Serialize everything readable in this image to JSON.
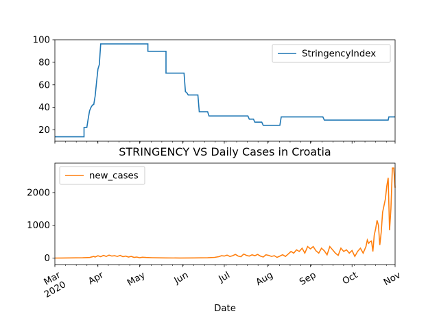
{
  "chart_data": [
    {
      "type": "line",
      "title": "",
      "xlabel": "",
      "ylabel": "",
      "ylim": [
        10,
        100
      ],
      "yticks": [
        20,
        40,
        60,
        80,
        100
      ],
      "xlim_days": [
        0,
        245
      ],
      "legend": "top-right",
      "grid": false,
      "series": [
        {
          "name": "StringencyIndex",
          "color": "#1f77b4",
          "step": true,
          "points": [
            [
              0,
              13.9
            ],
            [
              21,
              13.9
            ],
            [
              21,
              22.2
            ],
            [
              23,
              22.2
            ],
            [
              24,
              30
            ],
            [
              25,
              37
            ],
            [
              26,
              40
            ],
            [
              27,
              42
            ],
            [
              28,
              42.6
            ],
            [
              29,
              50
            ],
            [
              30,
              62
            ],
            [
              31,
              74
            ],
            [
              32,
              78
            ],
            [
              33,
              96.3
            ],
            [
              67,
              96.3
            ],
            [
              67,
              89.8
            ],
            [
              80,
              89.8
            ],
            [
              80,
              70.4
            ],
            [
              93,
              70.4
            ],
            [
              94,
              54
            ],
            [
              95,
              53
            ],
            [
              96,
              51
            ],
            [
              103,
              51
            ],
            [
              104,
              36.1
            ],
            [
              110,
              36.1
            ],
            [
              111,
              32.4
            ],
            [
              139,
              32.4
            ],
            [
              140,
              29.6
            ],
            [
              143,
              29.6
            ],
            [
              144,
              26.9
            ],
            [
              149,
              26.9
            ],
            [
              150,
              24.1
            ],
            [
              162,
              24.1
            ],
            [
              163,
              31.5
            ],
            [
              193,
              31.5
            ],
            [
              194,
              28.7
            ],
            [
              240,
              28.7
            ],
            [
              240.5,
              31.5
            ],
            [
              245,
              31.5
            ]
          ]
        }
      ]
    },
    {
      "type": "line",
      "title": "STRINGENCY VS Daily Cases in Croatia",
      "xlabel": "Date",
      "ylabel": "",
      "ylim": [
        -200,
        2900
      ],
      "yticks": [
        0,
        1000,
        2000
      ],
      "xlim_days": [
        0,
        245
      ],
      "xticks": [
        {
          "day": 0,
          "label": "Mar",
          "sub": "2020"
        },
        {
          "day": 31,
          "label": "Apr",
          "sub": ""
        },
        {
          "day": 61,
          "label": "May",
          "sub": ""
        },
        {
          "day": 92,
          "label": "Jun",
          "sub": ""
        },
        {
          "day": 122,
          "label": "Jul",
          "sub": ""
        },
        {
          "day": 153,
          "label": "Aug",
          "sub": ""
        },
        {
          "day": 184,
          "label": "Sep",
          "sub": ""
        },
        {
          "day": 214,
          "label": "Oct",
          "sub": ""
        },
        {
          "day": 245,
          "label": "Nov",
          "sub": ""
        }
      ],
      "legend": "top-left",
      "grid": false,
      "series": [
        {
          "name": "new_cases",
          "color": "#ff7f0e",
          "points": [
            [
              0,
              0
            ],
            [
              5,
              2
            ],
            [
              10,
              3
            ],
            [
              15,
              5
            ],
            [
              20,
              8
            ],
            [
              25,
              15
            ],
            [
              28,
              50
            ],
            [
              29,
              30
            ],
            [
              31,
              70
            ],
            [
              33,
              40
            ],
            [
              35,
              80
            ],
            [
              37,
              50
            ],
            [
              39,
              90
            ],
            [
              41,
              60
            ],
            [
              43,
              70
            ],
            [
              45,
              50
            ],
            [
              47,
              80
            ],
            [
              49,
              40
            ],
            [
              51,
              60
            ],
            [
              53,
              30
            ],
            [
              55,
              50
            ],
            [
              57,
              20
            ],
            [
              59,
              30
            ],
            [
              61,
              10
            ],
            [
              63,
              25
            ],
            [
              66,
              15
            ],
            [
              70,
              10
            ],
            [
              75,
              5
            ],
            [
              80,
              3
            ],
            [
              90,
              2
            ],
            [
              100,
              3
            ],
            [
              110,
              8
            ],
            [
              115,
              20
            ],
            [
              118,
              40
            ],
            [
              120,
              70
            ],
            [
              122,
              60
            ],
            [
              124,
              90
            ],
            [
              126,
              50
            ],
            [
              128,
              70
            ],
            [
              130,
              110
            ],
            [
              132,
              60
            ],
            [
              134,
              40
            ],
            [
              136,
              120
            ],
            [
              138,
              80
            ],
            [
              140,
              60
            ],
            [
              142,
              100
            ],
            [
              144,
              70
            ],
            [
              146,
              110
            ],
            [
              148,
              60
            ],
            [
              150,
              30
            ],
            [
              152,
              100
            ],
            [
              154,
              80
            ],
            [
              156,
              50
            ],
            [
              158,
              70
            ],
            [
              160,
              20
            ],
            [
              162,
              60
            ],
            [
              164,
              100
            ],
            [
              166,
              50
            ],
            [
              168,
              120
            ],
            [
              170,
              200
            ],
            [
              172,
              150
            ],
            [
              174,
              250
            ],
            [
              176,
              200
            ],
            [
              178,
              300
            ],
            [
              180,
              150
            ],
            [
              182,
              350
            ],
            [
              184,
              280
            ],
            [
              186,
              350
            ],
            [
              188,
              220
            ],
            [
              190,
              150
            ],
            [
              192,
              300
            ],
            [
              194,
              220
            ],
            [
              196,
              100
            ],
            [
              198,
              350
            ],
            [
              200,
              250
            ],
            [
              202,
              150
            ],
            [
              204,
              80
            ],
            [
              206,
              300
            ],
            [
              208,
              200
            ],
            [
              210,
              250
            ],
            [
              212,
              150
            ],
            [
              214,
              230
            ],
            [
              216,
              50
            ],
            [
              218,
              200
            ],
            [
              220,
              300
            ],
            [
              222,
              150
            ],
            [
              224,
              350
            ],
            [
              225,
              550
            ],
            [
              226,
              450
            ],
            [
              227,
              500
            ],
            [
              228,
              520
            ],
            [
              229,
              200
            ],
            [
              230,
              700
            ],
            [
              231,
              900
            ],
            [
              232,
              1150
            ],
            [
              233,
              1000
            ],
            [
              234,
              400
            ],
            [
              235,
              800
            ],
            [
              236,
              1400
            ],
            [
              237,
              1600
            ],
            [
              238,
              1800
            ],
            [
              239,
              2200
            ],
            [
              240,
              2450
            ],
            [
              241,
              850
            ],
            [
              242,
              1500
            ],
            [
              243,
              2750
            ],
            [
              244,
              2750
            ],
            [
              245,
              2150
            ]
          ]
        }
      ]
    }
  ]
}
